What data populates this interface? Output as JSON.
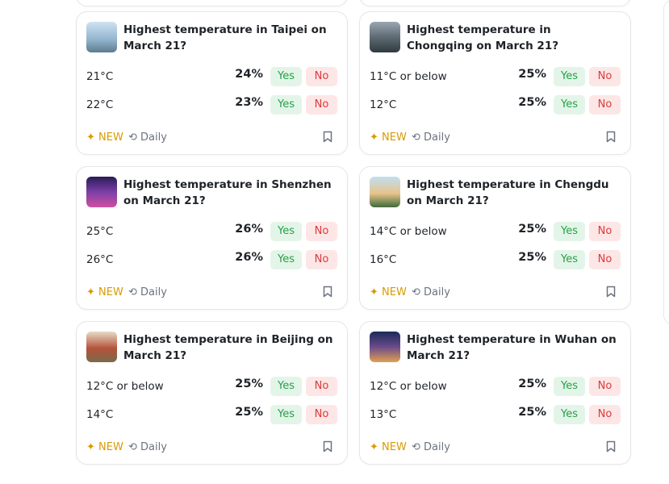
{
  "labels": {
    "yes": "Yes",
    "no": "No",
    "new": "NEW",
    "daily": "Daily"
  },
  "cards": [
    {
      "title": "Highest temperature in Taipei on March 21?",
      "outcomes": [
        {
          "label": "21°C",
          "chance": "24%"
        },
        {
          "label": "22°C",
          "chance": "23%"
        }
      ]
    },
    {
      "title": "Highest temperature in Chongqing on March 21?",
      "outcomes": [
        {
          "label": "11°C or below",
          "chance": "25%"
        },
        {
          "label": "12°C",
          "chance": "25%"
        }
      ]
    },
    {
      "title": "Highest temperature in Shenzhen on March 21?",
      "outcomes": [
        {
          "label": "25°C",
          "chance": "26%"
        },
        {
          "label": "26°C",
          "chance": "26%"
        }
      ]
    },
    {
      "title": "Highest temperature in Chengdu on March 21?",
      "outcomes": [
        {
          "label": "14°C or below",
          "chance": "25%"
        },
        {
          "label": "16°C",
          "chance": "25%"
        }
      ]
    },
    {
      "title": "Highest temperature in Beijing on March 21?",
      "outcomes": [
        {
          "label": "12°C or below",
          "chance": "25%"
        },
        {
          "label": "14°C",
          "chance": "25%"
        }
      ]
    },
    {
      "title": "Highest temperature in Wuhan on March 21?",
      "outcomes": [
        {
          "label": "12°C or below",
          "chance": "25%"
        },
        {
          "label": "13°C",
          "chance": "25%"
        }
      ]
    }
  ]
}
